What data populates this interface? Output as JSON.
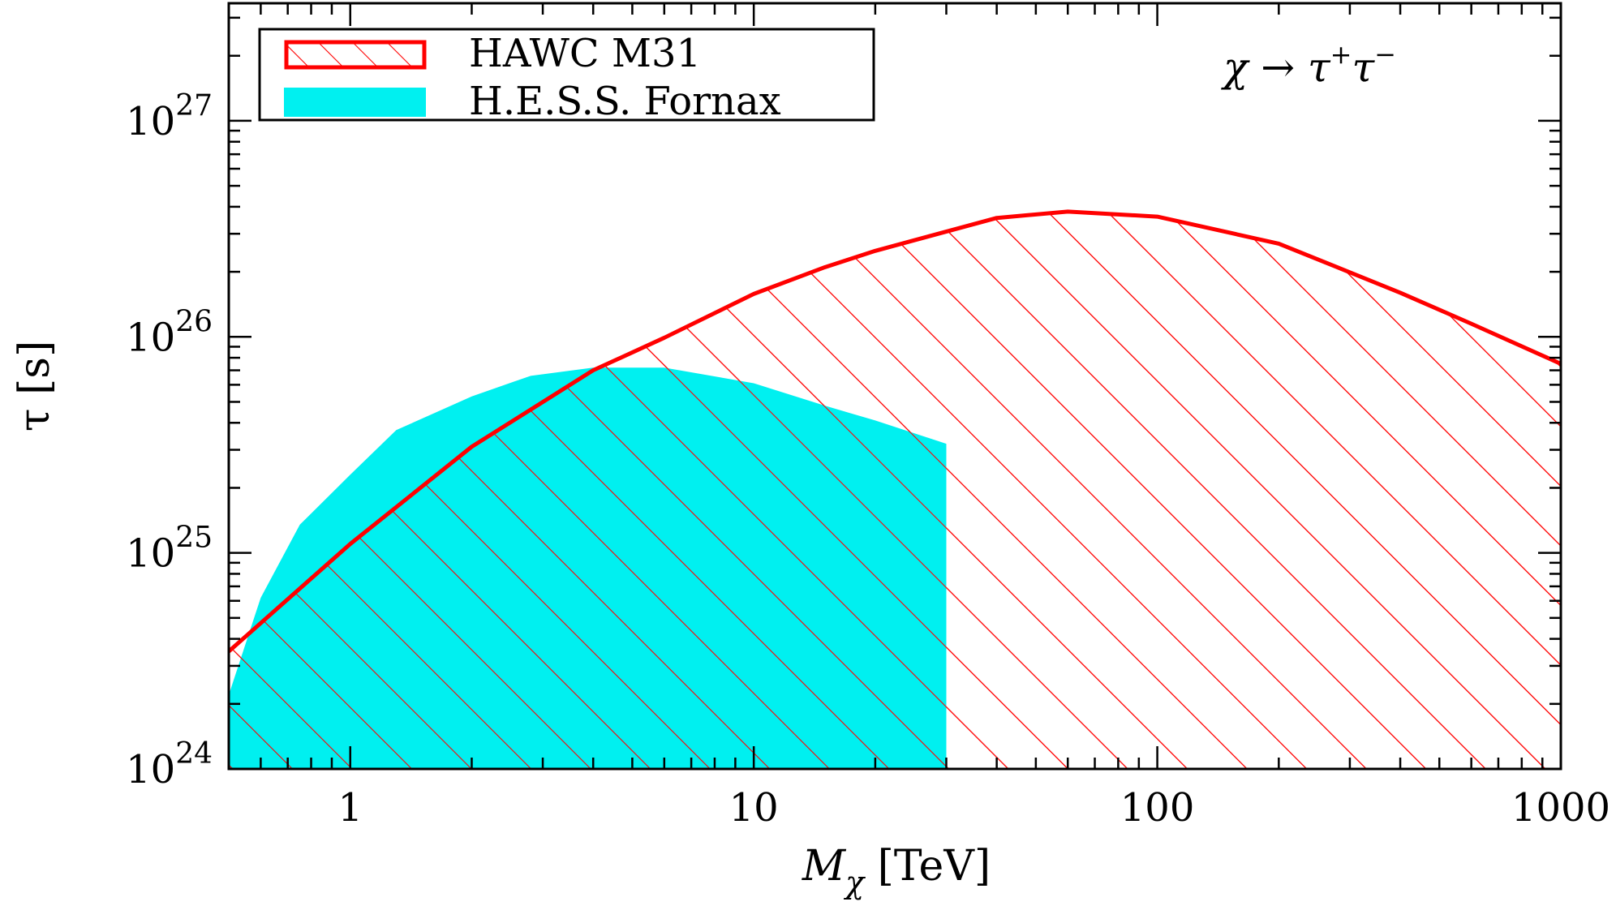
{
  "chart_data": {
    "type": "area",
    "title": "",
    "annotation": {
      "prefix": "χ → τ",
      "sup1": "+",
      "mid": "τ",
      "sup2": "−"
    },
    "xlabel": {
      "symbol": "M",
      "subscript": "χ",
      "unit": " [TeV]"
    },
    "ylabel": "τ [s]",
    "xscale": "log",
    "yscale": "log",
    "xlim": [
      0.5,
      1000
    ],
    "ylim": [
      1e+24,
      3.5e+27
    ],
    "x_ticks": [
      1,
      10,
      100,
      1000
    ],
    "x_tick_labels": [
      "1",
      "10",
      "100",
      "1000"
    ],
    "y_ticks": [
      1e+24,
      1e+25,
      1e+26,
      1e+27
    ],
    "y_tick_base": "10",
    "y_tick_exponents": [
      "24",
      "25",
      "26",
      "27"
    ],
    "grid": false,
    "legend_position": "top-left",
    "series": [
      {
        "name": "HAWC M31",
        "style": "hatched",
        "color": "#ff0000",
        "x": [
          0.5,
          1,
          2,
          4,
          6,
          10,
          15,
          20,
          25,
          40,
          60,
          100,
          200,
          400,
          600,
          1000
        ],
        "y": [
          3.5e+24,
          1.1e+25,
          3.1e+25,
          7e+25,
          9.9e+25,
          1.58e+26,
          2.1e+26,
          2.5e+26,
          2.8e+26,
          3.55e+26,
          3.8e+26,
          3.6e+26,
          2.7e+26,
          1.6e+26,
          1.15e+26,
          7.5e+25
        ]
      },
      {
        "name": "H.E.S.S. Fornax",
        "style": "filled",
        "color": "#00f0f0",
        "x": [
          0.5,
          0.6,
          0.75,
          1,
          1.3,
          2,
          2.8,
          4,
          6,
          10,
          15,
          20,
          30
        ],
        "y": [
          2.2e+24,
          6.2e+24,
          1.35e+25,
          2.3e+25,
          3.7e+25,
          5.3e+25,
          6.6e+25,
          7.2e+25,
          7.2e+25,
          6.1e+25,
          4.8e+25,
          4.1e+25,
          3.2e+25
        ]
      }
    ]
  }
}
